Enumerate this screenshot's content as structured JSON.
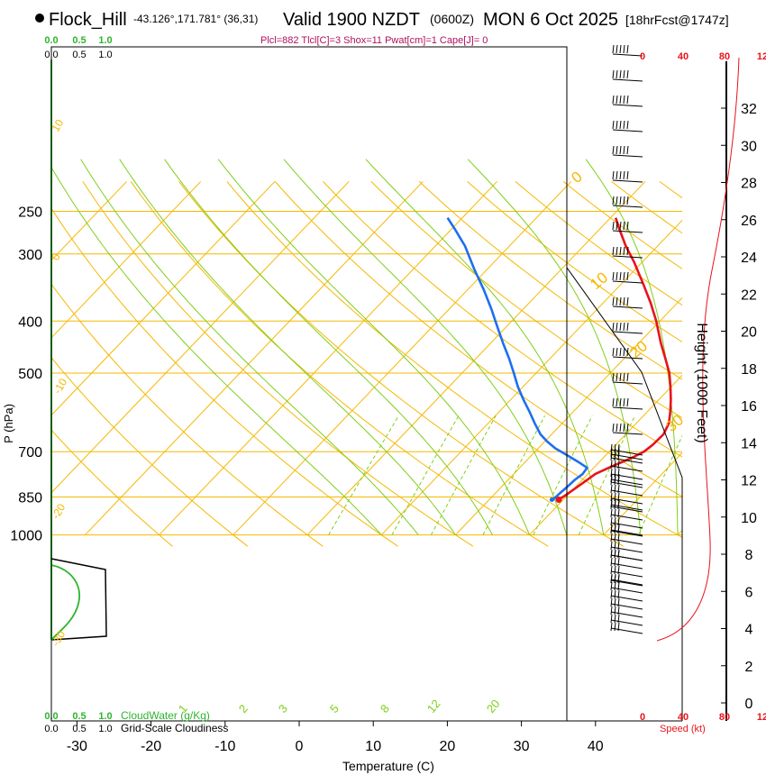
{
  "header": {
    "station": "Flock_Hill",
    "coords": "-43.126°,171.781° (36,31)",
    "valid": "Valid 1900 NZDT",
    "utc": "(0600Z)",
    "date": "MON 6 Oct 2025",
    "fcst": "[18hrFcst@1747z]",
    "params": "Plcl=882 Tlcl[C]=3 Shox=11 Pwat[cm]=1 Cape[J]= 0"
  },
  "labels": {
    "y_axis": "P (hPa)",
    "x_axis": "Temperature (C)",
    "height_axis": "Height (1000 Feet)",
    "speed_axis": "Speed (kt)",
    "cloudwater": "CloudWater (g/Kg)",
    "cloudiness": "Grid-Scale Cloudiness"
  },
  "colors": {
    "isotherm": "#f5b800",
    "dry_adiabat": "#f5b800",
    "moist_adiabat": "#7fcf1a",
    "mixing_ratio": "#7fcf1a",
    "temperature": "#e8131b",
    "dewpoint": "#1e6ef0",
    "cloudwater": "#2db52d",
    "cloudiness": "#000000",
    "speed": "#e8131b",
    "params_text": "#b01060"
  },
  "chart_data": {
    "type": "skew-t",
    "title": "Flock_Hill Valid 1900 NZDT (0600Z) MON 6 Oct 2025 [18hrFcst@1747z]",
    "xlabel": "Temperature (C)",
    "ylabel": "P (hPa)",
    "x_ticks": [
      -30,
      -20,
      -10,
      0,
      10,
      20,
      30,
      40
    ],
    "x_tick_labels": [
      "-30",
      "-20",
      "-10",
      "0",
      "10",
      "20",
      "30",
      "40"
    ],
    "p_ticks": [
      250,
      300,
      400,
      500,
      700,
      850,
      1000
    ],
    "p_tick_labels": [
      "250",
      "300",
      "400",
      "500",
      "700",
      "850",
      "1000"
    ],
    "dry_adiabat_labels": [
      "10",
      "0",
      "-10",
      "-20",
      "-30",
      "0",
      "10",
      "20",
      "30"
    ],
    "mixing_ratio_labels": [
      "1",
      "2",
      "3",
      "5",
      "8",
      "12",
      "20"
    ],
    "height_ticks": [
      "0",
      "2",
      "4",
      "6",
      "8",
      "10",
      "12",
      "14",
      "16",
      "18",
      "20",
      "22",
      "24",
      "26",
      "28",
      "30",
      "32"
    ],
    "speed_ticks": [
      "0",
      "40",
      "80",
      "12"
    ],
    "cloud_ticks": [
      "0.0",
      "0.5",
      "1.0"
    ],
    "temperature_profile": [
      {
        "p": 860,
        "t": 9.4
      },
      {
        "p": 840,
        "t": 9.8
      },
      {
        "p": 800,
        "t": 10.5
      },
      {
        "p": 770,
        "t": 11.0
      },
      {
        "p": 745,
        "t": 12.3
      },
      {
        "p": 720,
        "t": 13.8
      },
      {
        "p": 700,
        "t": 14.7
      },
      {
        "p": 680,
        "t": 15.0
      },
      {
        "p": 650,
        "t": 15.1
      },
      {
        "p": 620,
        "t": 14.4
      },
      {
        "p": 590,
        "t": 13.1
      },
      {
        "p": 560,
        "t": 11.6
      },
      {
        "p": 530,
        "t": 9.9
      },
      {
        "p": 500,
        "t": 8.0
      },
      {
        "p": 470,
        "t": 5.6
      },
      {
        "p": 440,
        "t": 3.0
      },
      {
        "p": 400,
        "t": -0.5
      },
      {
        "p": 370,
        "t": -3.6
      },
      {
        "p": 340,
        "t": -7.2
      },
      {
        "p": 310,
        "t": -11.2
      },
      {
        "p": 290,
        "t": -14.3
      },
      {
        "p": 270,
        "t": -17.3
      },
      {
        "p": 257,
        "t": -19.3
      }
    ],
    "dewpoint_profile": [
      {
        "p": 860,
        "t": 8.6
      },
      {
        "p": 840,
        "t": 8.7
      },
      {
        "p": 810,
        "t": 8.9
      },
      {
        "p": 790,
        "t": 9.0
      },
      {
        "p": 770,
        "t": 9.3
      },
      {
        "p": 750,
        "t": 9.1
      },
      {
        "p": 730,
        "t": 7.0
      },
      {
        "p": 710,
        "t": 4.7
      },
      {
        "p": 690,
        "t": 2.3
      },
      {
        "p": 670,
        "t": 0.3
      },
      {
        "p": 650,
        "t": -1.5
      },
      {
        "p": 620,
        "t": -3.7
      },
      {
        "p": 590,
        "t": -5.9
      },
      {
        "p": 560,
        "t": -8.3
      },
      {
        "p": 530,
        "t": -10.7
      },
      {
        "p": 500,
        "t": -13.0
      },
      {
        "p": 470,
        "t": -15.5
      },
      {
        "p": 440,
        "t": -18.3
      },
      {
        "p": 410,
        "t": -21.2
      },
      {
        "p": 380,
        "t": -24.3
      },
      {
        "p": 350,
        "t": -27.8
      },
      {
        "p": 320,
        "t": -31.8
      },
      {
        "p": 290,
        "t": -36.0
      },
      {
        "p": 270,
        "t": -39.5
      },
      {
        "p": 257,
        "t": -42.0
      }
    ]
  }
}
